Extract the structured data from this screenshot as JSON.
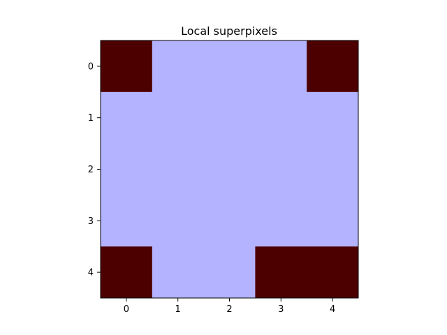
{
  "chart_data": {
    "type": "heatmap",
    "title": "Local superpixels",
    "xlabel": "",
    "ylabel": "",
    "x_ticks": [
      "0",
      "1",
      "2",
      "3",
      "4"
    ],
    "y_ticks": [
      "0",
      "1",
      "2",
      "3",
      "4"
    ],
    "rows": 5,
    "cols": 5,
    "values": [
      [
        1,
        0,
        0,
        0,
        1
      ],
      [
        0,
        0,
        0,
        0,
        0
      ],
      [
        0,
        0,
        0,
        0,
        0
      ],
      [
        0,
        0,
        0,
        0,
        0
      ],
      [
        1,
        0,
        0,
        1,
        1
      ]
    ],
    "colors": {
      "0": "#b3b3ff",
      "1": "#4c0000"
    },
    "grid": false,
    "legend": false,
    "axis_frame_color": "#000000"
  }
}
